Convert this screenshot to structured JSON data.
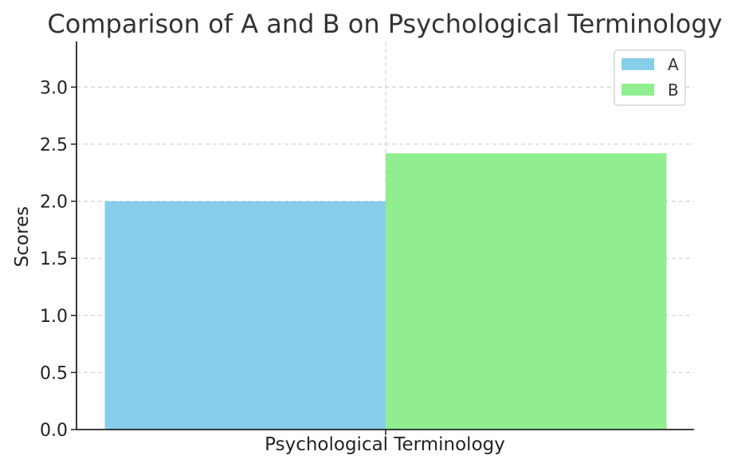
{
  "chart_data": {
    "type": "bar",
    "title": "Comparison of A and B on Psychological Terminology",
    "xlabel": "Psychological Terminology",
    "ylabel": "Scores",
    "categories": [
      "Psychological Terminology"
    ],
    "series": [
      {
        "name": "A",
        "values": [
          2.0
        ],
        "color": "#87CEEB"
      },
      {
        "name": "B",
        "values": [
          2.42
        ],
        "color": "#90EE90"
      }
    ],
    "ylim": [
      0,
      3.4
    ],
    "yticks": [
      "0.0",
      "0.5",
      "1.0",
      "1.5",
      "2.0",
      "2.5",
      "3.0"
    ],
    "grid": true,
    "legend": "top-right"
  }
}
